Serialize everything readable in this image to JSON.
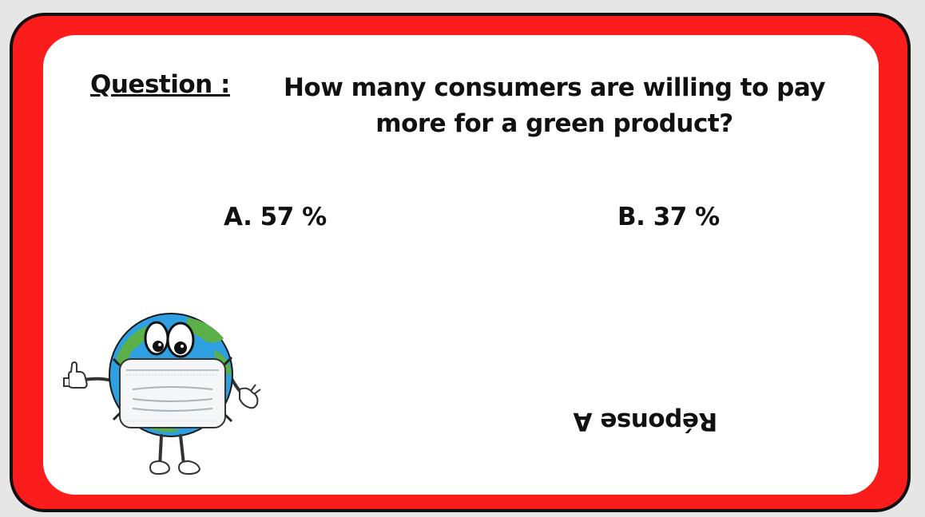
{
  "question": {
    "label": "Question :",
    "line1": "How many consumers are willing to pay",
    "line2": "more for a green product?"
  },
  "answers": [
    {
      "label": "A. 57 %"
    },
    {
      "label": "B. 37 %"
    }
  ],
  "answer_reveal": "Réponse A",
  "colors": {
    "frame": "#fb1c1c",
    "frame_border": "#111111",
    "card": "#ffffff",
    "ocean": "#2e9fe0",
    "land": "#5bb04a"
  },
  "mascot": {
    "icon": "earth-mascot-with-face-mask-icon"
  }
}
